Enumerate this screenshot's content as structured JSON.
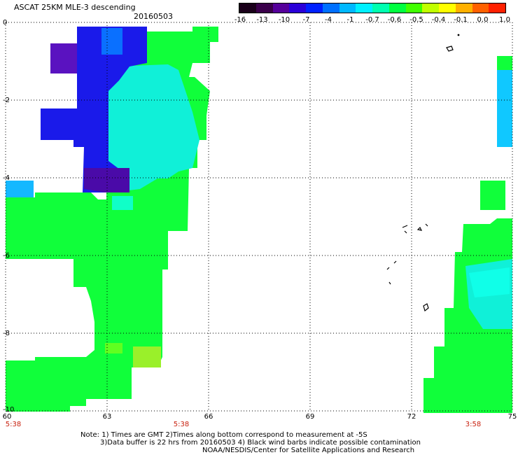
{
  "title": "ASCAT 25KM MLE-3 descending",
  "date": "20160503",
  "colorbar": {
    "labels": [
      "-16",
      "-13",
      "-10",
      "-7",
      "-4",
      "-1",
      "-0.7",
      "-0.6",
      "-0.5",
      "-0.4",
      "-0.1",
      "0.0",
      "1.0"
    ],
    "colors": [
      "#1a001a",
      "#3a004a",
      "#55009a",
      "#2a00d8",
      "#0020ff",
      "#0070ff",
      "#00b8ff",
      "#00f0ff",
      "#00ffb0",
      "#00ff40",
      "#40ff00",
      "#c0ff00",
      "#ffff00",
      "#ffb000",
      "#ff6000",
      "#ff2000"
    ]
  },
  "axes": {
    "y_ticks": [
      "0",
      "-2",
      "-4",
      "-6",
      "-8",
      "-10"
    ],
    "x_ticks": [
      "60",
      "63",
      "66",
      "69",
      "72",
      "75"
    ],
    "time_labels": [
      {
        "lon": "60",
        "time": "5:38"
      },
      {
        "lon": "66",
        "time": "5:38"
      },
      {
        "lon": "74",
        "time": "3:58"
      }
    ]
  },
  "notes": [
    "Note: 1) Times are GMT 2)Times along bottom correspond to measurement at -5S",
    "3)Data buffer is 22 hrs from 20160503 4) Black wind barbs indicate possible contamination",
    "NOAA/NESDIS/Center for Satellite Applications and Research"
  ]
}
